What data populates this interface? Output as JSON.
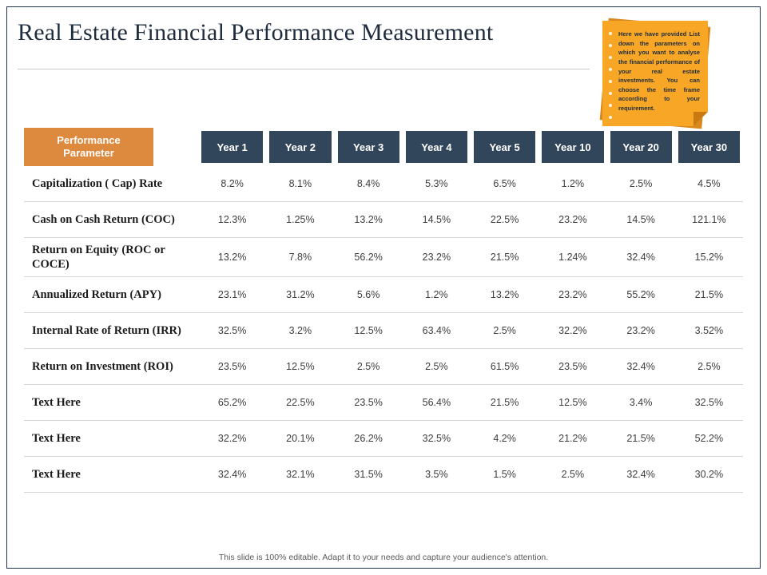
{
  "slide": {
    "title": "Real Estate Financial Performance Measurement",
    "footer": "This slide is 100% editable.  Adapt it to your needs and capture your audience's attention."
  },
  "sticky_note": {
    "text": "Here we have provided List down the parameters on which you want to analyse the financial performance of your real estate investments. You can choose the time frame according to your requirement."
  },
  "table": {
    "param_header": "Performance Parameter",
    "year_headers": [
      "Year 1",
      "Year 2",
      "Year 3",
      "Year 4",
      "Year 5",
      "Year 10",
      "Year 20",
      "Year 30"
    ],
    "rows": [
      {
        "label": "Capitalization ( Cap) Rate",
        "values": [
          "8.2%",
          "8.1%",
          "8.4%",
          "5.3%",
          "6.5%",
          "1.2%",
          "2.5%",
          "4.5%"
        ]
      },
      {
        "label": "Cash on Cash Return (COC)",
        "values": [
          "12.3%",
          "1.25%",
          "13.2%",
          "14.5%",
          "22.5%",
          "23.2%",
          "14.5%",
          "121.1%"
        ]
      },
      {
        "label": "Return on Equity (ROC or COCE)",
        "values": [
          "13.2%",
          "7.8%",
          "56.2%",
          "23.2%",
          "21.5%",
          "1.24%",
          "32.4%",
          "15.2%"
        ]
      },
      {
        "label": "Annualized Return (APY)",
        "values": [
          "23.1%",
          "31.2%",
          "5.6%",
          "1.2%",
          "13.2%",
          "23.2%",
          "55.2%",
          "21.5%"
        ]
      },
      {
        "label": "Internal Rate of Return (IRR)",
        "values": [
          "32.5%",
          "3.2%",
          "12.5%",
          "63.4%",
          "2.5%",
          "32.2%",
          "23.2%",
          "3.52%"
        ]
      },
      {
        "label": "Return on Investment (ROI)",
        "values": [
          "23.5%",
          "12.5%",
          "2.5%",
          "2.5%",
          "61.5%",
          "23.5%",
          "32.4%",
          "2.5%"
        ]
      },
      {
        "label": "Text Here",
        "values": [
          "65.2%",
          "22.5%",
          "23.5%",
          "56.4%",
          "21.5%",
          "12.5%",
          "3.4%",
          "32.5%"
        ]
      },
      {
        "label": "Text Here",
        "values": [
          "32.2%",
          "20.1%",
          "26.2%",
          "32.5%",
          "4.2%",
          "21.2%",
          "21.5%",
          "52.2%"
        ]
      },
      {
        "label": "Text Here",
        "values": [
          "32.4%",
          "32.1%",
          "31.5%",
          "3.5%",
          "1.5%",
          "2.5%",
          "32.4%",
          "30.2%"
        ]
      }
    ]
  },
  "colors": {
    "title_navy": "#1e2c3d",
    "year_header_navy": "#32465b",
    "param_header_orange": "#dd8a3e",
    "note_orange": "#f8a625",
    "note_shadow_orange": "#d8881c"
  }
}
